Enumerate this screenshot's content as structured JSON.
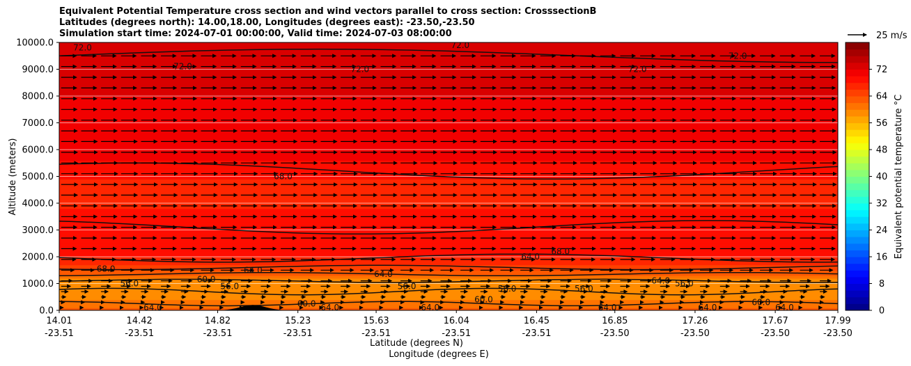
{
  "chart_data": {
    "type": "heatmap",
    "subtype": "filled contour cross section with wind vectors",
    "title_lines": [
      "Equivalent Potential Temperature cross section and wind vectors parallel to cross section: CrosssectionB",
      "Latitudes (degrees north): 14.00,18.00, Longitudes (degrees east): -23.50,-23.50",
      "Simulation start time: 2024-07-01 00:00:00, Valid time: 2024-07-03 08:00:00"
    ],
    "xlabel": "Latitude (degrees N)",
    "xlabel2": "Longitude (degrees E)",
    "ylabel": "Altitude (meters)",
    "x_ticks": [
      {
        "lat": "14.01",
        "lon": "-23.51"
      },
      {
        "lat": "14.42",
        "lon": "-23.51"
      },
      {
        "lat": "14.82",
        "lon": "-23.51"
      },
      {
        "lat": "15.23",
        "lon": "-23.51"
      },
      {
        "lat": "15.63",
        "lon": "-23.51"
      },
      {
        "lat": "16.04",
        "lon": "-23.51"
      },
      {
        "lat": "16.45",
        "lon": "-23.51"
      },
      {
        "lat": "16.85",
        "lon": "-23.50"
      },
      {
        "lat": "17.26",
        "lon": "-23.50"
      },
      {
        "lat": "17.67",
        "lon": "-23.50"
      },
      {
        "lat": "17.99",
        "lon": "-23.50"
      }
    ],
    "x_tick_values": [
      14.01,
      14.42,
      14.82,
      15.23,
      15.63,
      16.04,
      16.45,
      16.85,
      17.26,
      17.67,
      17.99
    ],
    "xlim": [
      14.01,
      17.99
    ],
    "y_ticks": [
      "0.0",
      "1000.0",
      "2000.0",
      "3000.0",
      "4000.0",
      "5000.0",
      "6000.0",
      "7000.0",
      "8000.0",
      "9000.0",
      "10000.0"
    ],
    "y_tick_values": [
      0,
      1000,
      2000,
      3000,
      4000,
      5000,
      6000,
      7000,
      8000,
      9000,
      10000
    ],
    "ylim": [
      0,
      10000
    ],
    "grid": "horizontal lines at y ticks",
    "colorbar": {
      "label": "Equivalent potential temperature $^\\circ$C",
      "label_text": "Equivalent potential temperature °C",
      "range": [
        0,
        80
      ],
      "level_step": 2,
      "ticks": [
        "0",
        "8",
        "16",
        "24",
        "32",
        "40",
        "48",
        "56",
        "64",
        "72"
      ],
      "tick_values": [
        0,
        8,
        16,
        24,
        32,
        40,
        48,
        56,
        64,
        72
      ],
      "colormap": "jet"
    },
    "quiver_key": {
      "label": "25 m/s",
      "speed": 25
    },
    "wind": {
      "direction": "along cross section (positive, northward)",
      "speed_by_altitude": [
        {
          "altitude": 0,
          "speed": 2
        },
        {
          "altitude": 500,
          "speed": 6
        },
        {
          "altitude": 1000,
          "speed": 14
        },
        {
          "altitude": 2000,
          "speed": 20
        },
        {
          "altitude": 5000,
          "speed": 22
        },
        {
          "altitude": 9500,
          "speed": 20
        }
      ]
    },
    "theta_e_profile": [
      {
        "altitude": 0,
        "value": 63
      },
      {
        "altitude": 500,
        "value": 59
      },
      {
        "altitude": 1000,
        "value": 58
      },
      {
        "altitude": 1500,
        "value": 64
      },
      {
        "altitude": 2000,
        "value": 68
      },
      {
        "altitude": 3000,
        "value": 69
      },
      {
        "altitude": 4500,
        "value": 67
      },
      {
        "altitude": 6000,
        "value": 71
      },
      {
        "altitude": 8000,
        "value": 72
      },
      {
        "altitude": 10000,
        "value": 74
      }
    ],
    "contour_labels": [
      "72.0",
      "72.0",
      "72.0",
      "72.0",
      "72.0",
      "72.0",
      "68.0",
      "68.0",
      "68.0",
      "64.0",
      "64.0",
      "60.0",
      "60.0",
      "60.0",
      "60.0",
      "56.0",
      "56.0",
      "56.0",
      "56.0",
      "56.0",
      "56.0",
      "64.0",
      "64.0",
      "64.0",
      "64.0",
      "64.0",
      "64.0",
      "64.0",
      "64.0"
    ],
    "terrain": {
      "description": "small hill near latitude 15.0",
      "peak_latitude": 15.0,
      "peak_altitude": 200
    }
  }
}
